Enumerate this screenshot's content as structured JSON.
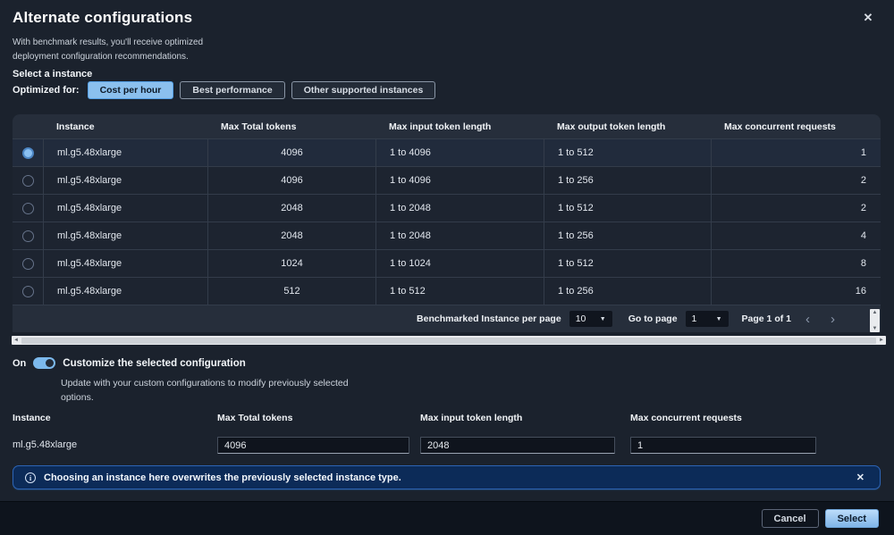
{
  "modal": {
    "title": "Alternate configurations",
    "description": "With benchmark results, you'll receive optimized deployment configuration recommendations.",
    "close_icon": "✕"
  },
  "optimized": {
    "section_label": "Select a instance",
    "label": "Optimized for:",
    "options": [
      {
        "label": "Cost per hour",
        "selected": true
      },
      {
        "label": "Best performance",
        "selected": false
      },
      {
        "label": "Other supported instances",
        "selected": false
      }
    ]
  },
  "table": {
    "columns": [
      "Instance",
      "Max Total tokens",
      "Max input token length",
      "Max output token length",
      "Max concurrent requests"
    ],
    "rows": [
      {
        "selected": true,
        "instance": "ml.g5.48xlarge",
        "max_total_tokens": "4096",
        "max_input_token_length": "1 to 4096",
        "max_output_token_length": "1 to 512",
        "max_concurrent_requests": "1"
      },
      {
        "selected": false,
        "instance": "ml.g5.48xlarge",
        "max_total_tokens": "4096",
        "max_input_token_length": "1 to 4096",
        "max_output_token_length": "1 to 256",
        "max_concurrent_requests": "2"
      },
      {
        "selected": false,
        "instance": "ml.g5.48xlarge",
        "max_total_tokens": "2048",
        "max_input_token_length": "1 to 2048",
        "max_output_token_length": "1 to 512",
        "max_concurrent_requests": "2"
      },
      {
        "selected": false,
        "instance": "ml.g5.48xlarge",
        "max_total_tokens": "2048",
        "max_input_token_length": "1 to 2048",
        "max_output_token_length": "1 to 256",
        "max_concurrent_requests": "4"
      },
      {
        "selected": false,
        "instance": "ml.g5.48xlarge",
        "max_total_tokens": "1024",
        "max_input_token_length": "1 to 1024",
        "max_output_token_length": "1 to 512",
        "max_concurrent_requests": "8"
      },
      {
        "selected": false,
        "instance": "ml.g5.48xlarge",
        "max_total_tokens": "512",
        "max_input_token_length": "1 to 512",
        "max_output_token_length": "1 to 256",
        "max_concurrent_requests": "16"
      }
    ]
  },
  "pagination": {
    "per_page_label": "Benchmarked Instance per page",
    "per_page_value": "10",
    "goto_label": "Go to page",
    "goto_value": "1",
    "page_status": "Page 1 of 1",
    "prev_icon": "‹",
    "next_icon": "›",
    "dropdown_caret": "▼"
  },
  "customize": {
    "toggle_state_label": "On",
    "title": "Customize the selected configuration",
    "description": "Update with your custom configurations to modify previously selected options."
  },
  "form": {
    "instance_label": "Instance",
    "instance_value": "ml.g5.48xlarge",
    "fields": [
      {
        "label": "Max Total tokens",
        "value": "4096"
      },
      {
        "label": "Max input token length",
        "value": "2048"
      },
      {
        "label": "Max concurrent requests",
        "value": "1"
      }
    ]
  },
  "banner": {
    "icon": "i",
    "text": "Choosing an instance here overwrites the previously selected instance type.",
    "close_icon": "✕"
  },
  "footer": {
    "cancel_label": "Cancel",
    "select_label": "Select"
  },
  "colors": {
    "accent": "#8bc0ee",
    "modal_bg": "#1b222d",
    "table_header_bg": "#262e3b",
    "row_bg": "#1d2430",
    "banner_bg": "#0c2b58",
    "banner_border": "#2d64b5",
    "select_button": "#7fb4e8"
  }
}
